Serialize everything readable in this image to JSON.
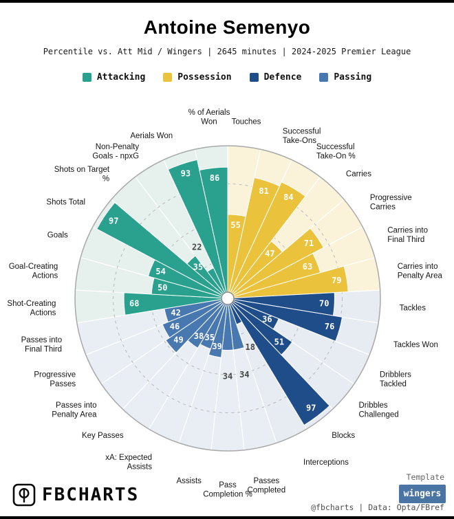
{
  "header": {
    "title": "Antoine Semenyo",
    "subtitle": "Percentile vs. Att Mid / Wingers | 2645 minutes | 2024-2025 Premier League"
  },
  "legend": {
    "items": [
      "Attacking",
      "Possession",
      "Defence",
      "Passing"
    ]
  },
  "chart_data": {
    "type": "bar",
    "subtype": "pizza-polar-percentile",
    "start_angle_deg": 90,
    "direction": "clockwise",
    "scale": [
      0,
      100
    ],
    "rings_pct": [
      25,
      50,
      75,
      100
    ],
    "grid": "dashed-circles",
    "groups": [
      {
        "name": "Possession",
        "color": "#ebc23c",
        "bg": "#faf3da",
        "metrics": [
          {
            "label": "Touches",
            "value": 55
          },
          {
            "label": "Successful\nTake-Ons",
            "value": 81
          },
          {
            "label": "Successful\nTake-On %",
            "value": 84
          },
          {
            "label": "Carries",
            "value": 47
          },
          {
            "label": "Progressive\nCarries",
            "value": 71
          },
          {
            "label": "Carries into\nFinal Third",
            "value": 63
          },
          {
            "label": "Carries into\nPenalty Area",
            "value": 79
          }
        ]
      },
      {
        "name": "Defence",
        "color": "#1e4d8a",
        "bg": "#e7ebf2",
        "metrics": [
          {
            "label": "Tackles",
            "value": 70
          },
          {
            "label": "Tackles Won",
            "value": 76
          },
          {
            "label": "Dribblers\nTackled",
            "value": 36
          },
          {
            "label": "Dribbles\nChallenged",
            "value": 51
          },
          {
            "label": "Blocks",
            "value": 97
          },
          {
            "label": "Interceptions",
            "value": 18
          }
        ]
      },
      {
        "name": "Passing",
        "color": "#4878b0",
        "bg": "#e9edf4",
        "metrics": [
          {
            "label": "Passes\nCompleted",
            "value": 34
          },
          {
            "label": "Pass\nCompletion %",
            "value": 34
          },
          {
            "label": "Assists",
            "value": 39
          },
          {
            "label": "xA: Expected\nAssists",
            "value": 35
          },
          {
            "label": "Key Passes",
            "value": 38
          },
          {
            "label": "Passes into\nPenalty Area",
            "value": 49
          },
          {
            "label": "Progressive\nPasses",
            "value": 46
          },
          {
            "label": "Passes into\nFinal Third",
            "value": 42
          }
        ]
      },
      {
        "name": "Attacking",
        "color": "#2aa18f",
        "bg": "#e6f0ed",
        "metrics": [
          {
            "label": "Shot-Creating\nActions",
            "value": 68
          },
          {
            "label": "Goal-Creating\nActions",
            "value": 50
          },
          {
            "label": "Goals",
            "value": 54
          },
          {
            "label": "Shots Total",
            "value": 97
          },
          {
            "label": "Shots on Target\n%",
            "value": 35
          },
          {
            "label": "Non-Penalty\nGoals - npxG",
            "value": 22
          },
          {
            "label": "Aerials Won",
            "value": 93
          },
          {
            "label": "% of Aerials\nWon",
            "value": 86
          }
        ]
      }
    ]
  },
  "footer": {
    "brand": "FBCHARTS",
    "template_label": "Template",
    "template_value": "wingers",
    "badge_color": "#4a74a4",
    "credit": "@fbcharts | Data: Opta/FBref"
  }
}
